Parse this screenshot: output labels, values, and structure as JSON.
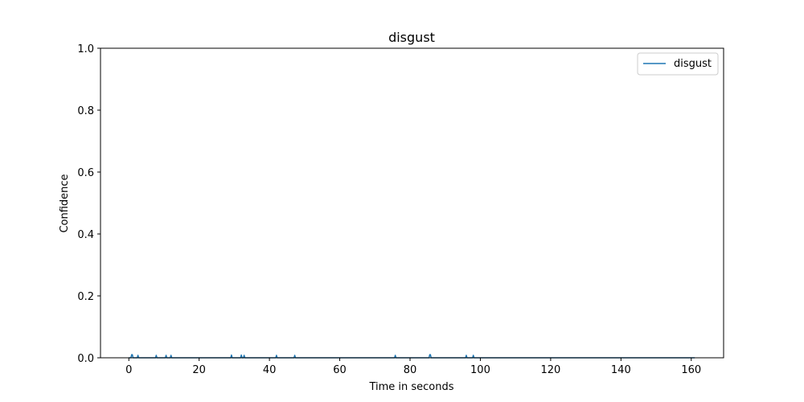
{
  "chart_data": {
    "type": "line",
    "title": "disgust",
    "xlabel": "Time in seconds",
    "ylabel": "Confidence",
    "xlim": [
      -8.06,
      169.2
    ],
    "ylim": [
      0.0,
      1.0
    ],
    "xticks": [
      0,
      20,
      40,
      60,
      80,
      100,
      120,
      140,
      160
    ],
    "yticks": [
      0.0,
      0.2,
      0.4,
      0.6,
      0.8,
      1.0
    ],
    "xtick_labels": [
      "0",
      "20",
      "40",
      "60",
      "80",
      "100",
      "120",
      "140",
      "160"
    ],
    "ytick_labels": [
      "0.0",
      "0.2",
      "0.4",
      "0.6",
      "0.8",
      "1.0"
    ],
    "grid": false,
    "legend_position": "top-right",
    "series": [
      {
        "name": "disgust",
        "color": "#1f77b4",
        "x": [
          0.0,
          0.6,
          0.8,
          1.0,
          1.2,
          2.4,
          2.6,
          2.8,
          7.6,
          7.8,
          8.0,
          10.4,
          10.6,
          10.8,
          11.8,
          12.0,
          12.2,
          29.0,
          29.2,
          29.4,
          31.8,
          32.0,
          32.2,
          32.6,
          32.8,
          33.0,
          41.8,
          42.0,
          42.2,
          47.0,
          47.2,
          47.4,
          75.6,
          75.8,
          76.0,
          85.4,
          85.6,
          85.8,
          86.0,
          95.8,
          96.0,
          96.2,
          97.8,
          98.0,
          98.2,
          161.0
        ],
        "values": [
          0.0,
          0.0,
          0.01,
          0.01,
          0.0,
          0.0,
          0.008,
          0.0,
          0.0,
          0.008,
          0.0,
          0.0,
          0.008,
          0.0,
          0.0,
          0.008,
          0.0,
          0.0,
          0.009,
          0.0,
          0.0,
          0.009,
          0.0,
          0.0,
          0.008,
          0.0,
          0.0,
          0.008,
          0.0,
          0.0,
          0.008,
          0.0,
          0.0,
          0.008,
          0.0,
          0.0,
          0.01,
          0.01,
          0.0,
          0.0,
          0.008,
          0.0,
          0.0,
          0.008,
          0.0,
          0.0
        ]
      }
    ]
  }
}
